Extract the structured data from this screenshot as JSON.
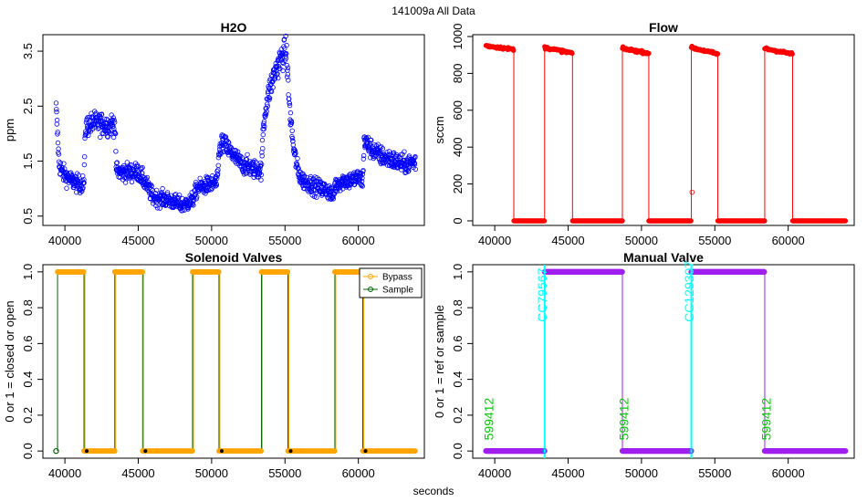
{
  "figure": {
    "suptitle": "141009a   All Data",
    "xlabel": "seconds"
  },
  "colors": {
    "h2o": "#0000ff",
    "flow": "#ff0000",
    "bypass": "#ffa500",
    "sample": "#006400",
    "manual": "#a020f0",
    "cyan_line": "#00ffff",
    "green_text": "#00cc00"
  },
  "chart_data": [
    {
      "id": "h2o",
      "type": "scatter",
      "title": "H2O",
      "ylabel": "ppm",
      "xlim": [
        38500,
        64500
      ],
      "ylim": [
        0.33,
        3.8
      ],
      "xticks": [
        40000,
        45000,
        50000,
        55000,
        60000
      ],
      "yticks": [
        0.5,
        1.5,
        2.5,
        3.5
      ],
      "ytick_labels": [
        "0.5",
        "1.5",
        "2.5",
        "3.5"
      ],
      "series": [
        {
          "x": [
            39400,
            39500,
            39600,
            39800,
            40200,
            40600,
            41000,
            41300,
            41400,
            41500,
            42000,
            42500,
            43000,
            43400,
            43500,
            43700,
            44000,
            45000,
            45500,
            46000,
            46500,
            47000,
            47500,
            48000,
            48500,
            48700,
            48800,
            49000,
            49500,
            50000,
            50400,
            50500,
            50700,
            51000,
            51500,
            52000,
            52500,
            53000,
            53400,
            53500,
            53700,
            54000,
            54300,
            54600,
            54900,
            55100,
            55300,
            55600,
            55900,
            56200,
            56600,
            57000,
            57500,
            58000,
            58300,
            58400,
            58600,
            59000,
            59500,
            60000,
            60300,
            60400,
            60600,
            61000,
            61500,
            62000,
            62500,
            63000,
            63500,
            63900
          ],
          "y": [
            2.45,
            2.0,
            1.45,
            1.3,
            1.2,
            1.12,
            1.08,
            1.1,
            2.1,
            2.15,
            2.2,
            2.18,
            2.15,
            2.2,
            1.35,
            1.3,
            1.3,
            1.3,
            1.1,
            0.85,
            0.82,
            0.8,
            0.75,
            0.7,
            0.75,
            0.8,
            0.85,
            1.0,
            1.05,
            1.08,
            1.12,
            1.65,
            1.85,
            1.75,
            1.6,
            1.45,
            1.4,
            1.35,
            1.35,
            2.0,
            2.5,
            2.85,
            3.1,
            3.3,
            3.45,
            3.5,
            2.5,
            1.7,
            1.3,
            1.15,
            1.1,
            1.05,
            1.0,
            0.95,
            0.85,
            1.05,
            1.1,
            1.15,
            1.15,
            1.2,
            1.15,
            1.9,
            1.8,
            1.7,
            1.6,
            1.55,
            1.5,
            1.45,
            1.45,
            1.5
          ]
        }
      ]
    },
    {
      "id": "flow",
      "type": "scatter",
      "title": "Flow",
      "ylabel": "sccm",
      "xlim": [
        38500,
        64500
      ],
      "ylim": [
        -25,
        1010
      ],
      "xticks": [
        40000,
        45000,
        50000,
        55000,
        60000
      ],
      "yticks": [
        0,
        200,
        400,
        600,
        800,
        1000
      ],
      "ytick_labels": [
        "0",
        "200",
        "400",
        "600",
        "800",
        "1000"
      ],
      "series": [
        {
          "segments": [
            {
              "x": [
                39400,
                41300
              ],
              "y_start": 950,
              "y_end": 930,
              "level": "high"
            },
            {
              "x": [
                41300,
                43400
              ],
              "y_start": 0,
              "y_end": 0,
              "level": "low"
            },
            {
              "x": [
                43400,
                45300
              ],
              "y_start": 940,
              "y_end": 910,
              "level": "high"
            },
            {
              "x": [
                45300,
                48700
              ],
              "y_start": 0,
              "y_end": 0,
              "level": "low"
            },
            {
              "x": [
                48700,
                50500
              ],
              "y_start": 935,
              "y_end": 910,
              "level": "high"
            },
            {
              "x": [
                50500,
                53400
              ],
              "y_start": 0,
              "y_end": 0,
              "level": "low"
            },
            {
              "x": [
                53400,
                55200
              ],
              "y_start": 940,
              "y_end": 905,
              "level": "high"
            },
            {
              "x": [
                55200,
                58400
              ],
              "y_start": 0,
              "y_end": 0,
              "level": "low"
            },
            {
              "x": [
                58400,
                60300
              ],
              "y_start": 935,
              "y_end": 905,
              "level": "high"
            },
            {
              "x": [
                60300,
                63900
              ],
              "y_start": 0,
              "y_end": 0,
              "level": "low"
            }
          ],
          "outliers": [
            {
              "x": 53450,
              "y": 155
            }
          ]
        }
      ]
    },
    {
      "id": "solenoid",
      "type": "line",
      "title": "Solenoid Valves",
      "ylabel": "0 or 1 = closed or open",
      "xlim": [
        38500,
        64500
      ],
      "ylim": [
        -0.04,
        1.04
      ],
      "xticks": [
        40000,
        45000,
        50000,
        55000,
        60000
      ],
      "yticks": [
        0.0,
        0.2,
        0.4,
        0.6,
        0.8,
        1.0
      ],
      "ytick_labels": [
        "0.0",
        "0.2",
        "0.4",
        "0.6",
        "0.8",
        "1.0"
      ],
      "legend": {
        "position": "top-right",
        "entries": [
          "Bypass",
          "Sample"
        ]
      },
      "series": [
        {
          "name": "Bypass",
          "intervals": [
            {
              "x": [
                39500,
                41300
              ],
              "value": 1
            },
            {
              "x": [
                41300,
                43400
              ],
              "value": 0
            },
            {
              "x": [
                43400,
                45300
              ],
              "value": 1
            },
            {
              "x": [
                45300,
                48700
              ],
              "value": 0
            },
            {
              "x": [
                48700,
                50500
              ],
              "value": 1
            },
            {
              "x": [
                50500,
                53400
              ],
              "value": 0
            },
            {
              "x": [
                53400,
                55200
              ],
              "value": 1
            },
            {
              "x": [
                55200,
                58400
              ],
              "value": 0
            },
            {
              "x": [
                58400,
                60300
              ],
              "value": 1
            },
            {
              "x": [
                60300,
                63900
              ],
              "value": 0
            }
          ]
        },
        {
          "name": "Sample",
          "intervals": [
            {
              "x": [
                39400,
                39500
              ],
              "value": 0
            }
          ],
          "transitions": [
            39500,
            41300,
            43400,
            45300,
            48700,
            50500,
            53400,
            55200,
            58400,
            60300
          ]
        }
      ]
    },
    {
      "id": "manual",
      "type": "line",
      "title": "Manual Valve",
      "ylabel": "0 or 1 = ref or sample",
      "xlim": [
        38500,
        64500
      ],
      "ylim": [
        -0.04,
        1.04
      ],
      "xticks": [
        40000,
        45000,
        50000,
        55000,
        60000
      ],
      "yticks": [
        0.0,
        0.2,
        0.4,
        0.6,
        0.8,
        1.0
      ],
      "ytick_labels": [
        "0.0",
        "0.2",
        "0.4",
        "0.6",
        "0.8",
        "1.0"
      ],
      "series": [
        {
          "intervals": [
            {
              "x": [
                39400,
                43400
              ],
              "value": 0
            },
            {
              "x": [
                43400,
                48700
              ],
              "value": 1
            },
            {
              "x": [
                48700,
                53400
              ],
              "value": 0
            },
            {
              "x": [
                53400,
                58400
              ],
              "value": 1
            },
            {
              "x": [
                58400,
                63900
              ],
              "value": 0
            }
          ]
        }
      ],
      "vlines": [
        43400,
        53400
      ],
      "annotations": [
        {
          "text": "CC79567",
          "x": 43550,
          "y": 0.72,
          "color": "cyan"
        },
        {
          "text": "CC129307",
          "x": 53550,
          "y": 0.72,
          "color": "cyan"
        },
        {
          "text": "599412",
          "x": 39900,
          "y": 0.06,
          "color": "green"
        },
        {
          "text": "599412",
          "x": 49100,
          "y": 0.06,
          "color": "green"
        },
        {
          "text": "599412",
          "x": 58800,
          "y": 0.06,
          "color": "green"
        }
      ]
    }
  ]
}
